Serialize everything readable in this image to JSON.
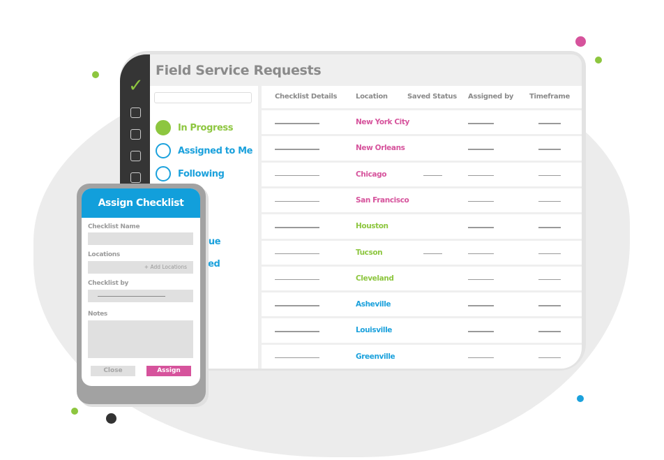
{
  "app": {
    "title": "Field Service Requests"
  },
  "filters": [
    {
      "label": "In Progress",
      "color": "#8dc63f",
      "filled": true
    },
    {
      "label": "Assigned to Me",
      "color": "#1ba1dc",
      "filled": false
    },
    {
      "label": "Following",
      "color": "#1ba1dc",
      "filled": false
    },
    {
      "label": "due",
      "color": "#1ba1dc"
    },
    {
      "label": "ved",
      "color": "#1ba1dc"
    }
  ],
  "table": {
    "headers": [
      "Checklist Details",
      "Location",
      "Saved Status",
      "Assigned by",
      "Timeframe"
    ],
    "rows": [
      {
        "location": "New York City",
        "color": "#d6539c",
        "saved": false
      },
      {
        "location": "New Orleans",
        "color": "#d6539c",
        "saved": false
      },
      {
        "location": "Chicago",
        "color": "#d6539c",
        "saved": true
      },
      {
        "location": "San Francisco",
        "color": "#d6539c",
        "saved": false
      },
      {
        "location": "Houston",
        "color": "#8dc63f",
        "saved": false
      },
      {
        "location": "Tucson",
        "color": "#8dc63f",
        "saved": true
      },
      {
        "location": "Cleveland",
        "color": "#8dc63f",
        "saved": false
      },
      {
        "location": "Asheville",
        "color": "#1ba1dc",
        "saved": false
      },
      {
        "location": "Louisville",
        "color": "#1ba1dc",
        "saved": false
      },
      {
        "location": "Greenville",
        "color": "#1ba1dc",
        "saved": false
      }
    ]
  },
  "modal": {
    "title": "Assign Checklist",
    "checklist_name_label": "Checklist Name",
    "locations_label": "Locations",
    "add_locations": "+ Add Locations",
    "checklist_by_label": "Checklist by",
    "notes_label": "Notes",
    "close_label": "Close",
    "assign_label": "Assign"
  },
  "colors": {
    "accent_blue": "#129fdb",
    "accent_pink": "#d6539c",
    "accent_green": "#8dc63f"
  }
}
